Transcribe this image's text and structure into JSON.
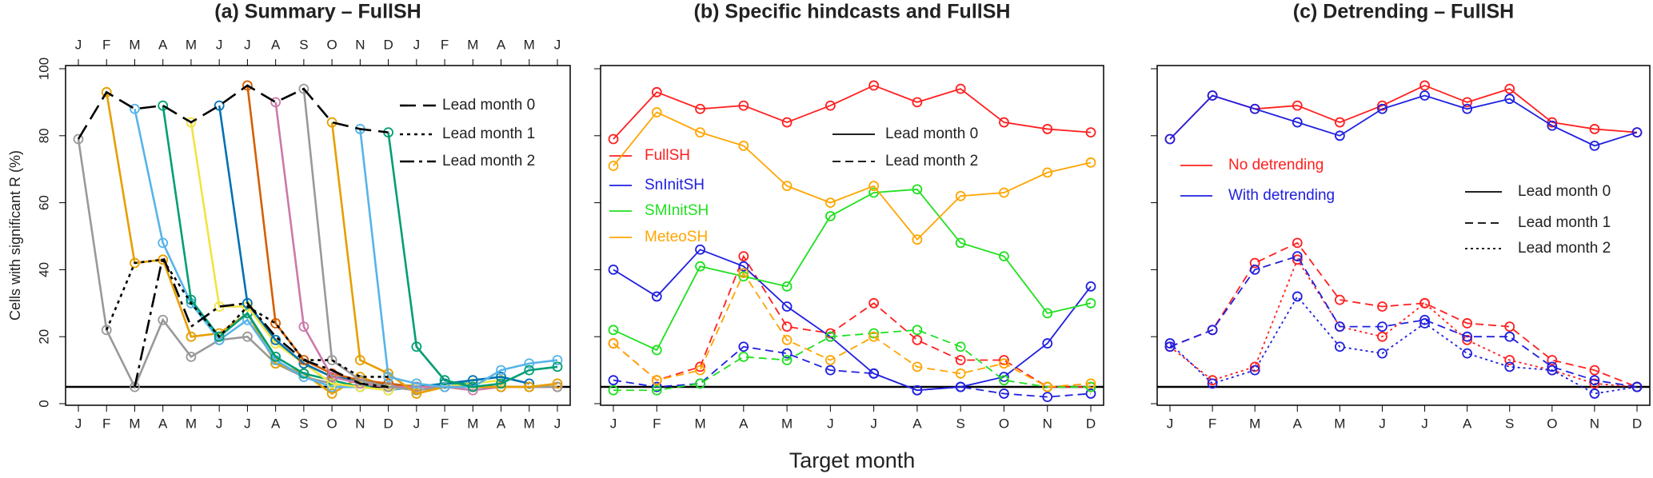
{
  "chart_data": [
    {
      "type": "line",
      "title": "(a) Summary – FullSH",
      "ylabel": "Cells with significant R (%)",
      "categories": [
        "J",
        "F",
        "M",
        "A",
        "M",
        "J",
        "J",
        "A",
        "S",
        "O",
        "N",
        "D",
        "J",
        "F",
        "M",
        "A",
        "M",
        "J"
      ],
      "top_axis": true,
      "ytick_labels": true,
      "ylim": [
        0,
        100
      ],
      "yticks": [
        0,
        20,
        40,
        60,
        80,
        100
      ],
      "reference_line": 5,
      "series": [
        {
          "color": "#999999",
          "values": [
            79,
            22,
            5,
            25,
            14,
            19,
            20,
            12,
            8,
            6,
            null,
            null,
            null,
            null,
            null,
            null,
            null,
            null
          ]
        },
        {
          "color": "#e69f00",
          "values": [
            null,
            93,
            42,
            43,
            20,
            21,
            27,
            12,
            9,
            3,
            8,
            5,
            null,
            null,
            null,
            null,
            null,
            null
          ]
        },
        {
          "color": "#56b4e9",
          "values": [
            null,
            null,
            88,
            48,
            30,
            19,
            25,
            13,
            8,
            5,
            5,
            4,
            5,
            6,
            null,
            null,
            null,
            null
          ]
        },
        {
          "color": "#009e73",
          "values": [
            null,
            null,
            null,
            89,
            31,
            20,
            27,
            14,
            9,
            7,
            5,
            6,
            5,
            6,
            6,
            null,
            null,
            null
          ]
        },
        {
          "color": "#f0e442",
          "values": [
            null,
            null,
            null,
            null,
            84,
            29,
            29,
            18,
            12,
            6,
            5,
            4,
            6,
            5,
            6,
            7,
            null,
            null
          ]
        },
        {
          "color": "#0072b2",
          "values": [
            null,
            null,
            null,
            null,
            null,
            89,
            30,
            19,
            12,
            8,
            7,
            6,
            5,
            6,
            7,
            8,
            6,
            null
          ]
        },
        {
          "color": "#d55e00",
          "values": [
            null,
            null,
            null,
            null,
            null,
            null,
            95,
            24,
            13,
            9,
            7,
            6,
            5,
            5,
            5,
            5,
            5,
            5
          ]
        },
        {
          "color": "#cc79a7",
          "values": [
            null,
            null,
            null,
            null,
            null,
            null,
            null,
            90,
            23,
            8,
            6,
            5,
            5,
            5,
            4,
            5,
            5,
            5
          ]
        },
        {
          "color": "#999999",
          "values": [
            null,
            null,
            null,
            null,
            null,
            null,
            null,
            null,
            94,
            13,
            7,
            5,
            4,
            5,
            5,
            5,
            5,
            5
          ]
        },
        {
          "color": "#e69f00",
          "values": [
            null,
            null,
            null,
            null,
            null,
            null,
            null,
            null,
            null,
            84,
            13,
            9,
            3,
            5,
            5,
            5,
            5,
            6
          ]
        },
        {
          "color": "#56b4e9",
          "values": [
            null,
            null,
            null,
            null,
            null,
            null,
            null,
            null,
            null,
            null,
            82,
            8,
            6,
            5,
            5,
            10,
            12,
            13
          ]
        },
        {
          "color": "#009e73",
          "values": [
            null,
            null,
            null,
            null,
            null,
            null,
            null,
            null,
            null,
            null,
            null,
            81,
            17,
            7,
            5,
            6,
            10,
            11
          ]
        }
      ],
      "lead_lines": [
        {
          "name": "Lead month 0",
          "dash": "20,9",
          "values": [
            79,
            93,
            88,
            89,
            84,
            89,
            95,
            90,
            94,
            84,
            82,
            81,
            null,
            null,
            null,
            null,
            null,
            null
          ]
        },
        {
          "name": "Lead month 1",
          "dash": "4,5",
          "values": [
            null,
            22,
            42,
            43,
            30,
            20,
            29,
            24,
            13,
            13,
            8,
            8,
            null,
            null,
            null,
            null,
            null,
            null
          ]
        },
        {
          "name": "Lead month 2",
          "dash": "18,6,4,6",
          "values": [
            null,
            null,
            5,
            44,
            23,
            29,
            30,
            20,
            13,
            10,
            6,
            5,
            null,
            null,
            null,
            null,
            null,
            null
          ]
        }
      ]
    },
    {
      "type": "line",
      "title": "(b) Specific hindcasts and FullSH",
      "xlabel": "Target month",
      "categories": [
        "J",
        "F",
        "M",
        "A",
        "M",
        "J",
        "J",
        "A",
        "S",
        "O",
        "N",
        "D"
      ],
      "top_axis": false,
      "ytick_labels": false,
      "ylim": [
        0,
        100
      ],
      "yticks": [
        0,
        20,
        40,
        60,
        80,
        100
      ],
      "reference_line": 5,
      "linestyles": [
        {
          "name": "Lead month 0",
          "dash": "none"
        },
        {
          "name": "Lead month 2",
          "dash": "10,6"
        }
      ],
      "series": [
        {
          "name": "FullSH",
          "color": "#ff2020",
          "values": [
            [
              79,
              93,
              88,
              89,
              84,
              89,
              95,
              90,
              94,
              84,
              82,
              81
            ],
            [
              18,
              7,
              11,
              44,
              23,
              21,
              30,
              19,
              13,
              13,
              5,
              5
            ]
          ]
        },
        {
          "name": "SnInitSH",
          "color": "#2020e0",
          "values": [
            [
              40,
              32,
              46,
              41,
              29,
              20,
              9,
              4,
              5,
              8,
              18,
              35
            ],
            [
              7,
              5,
              6,
              17,
              15,
              10,
              9,
              4,
              5,
              3,
              2,
              3
            ]
          ]
        },
        {
          "name": "SMInitSH",
          "color": "#20e020",
          "values": [
            [
              22,
              16,
              41,
              38,
              35,
              56,
              63,
              64,
              48,
              44,
              27,
              30
            ],
            [
              4,
              4,
              6,
              14,
              13,
              20,
              21,
              22,
              17,
              7,
              5,
              5
            ]
          ]
        },
        {
          "name": "MeteoSH",
          "color": "#ffa500",
          "values": [
            [
              71,
              87,
              81,
              77,
              65,
              60,
              65,
              49,
              62,
              63,
              69,
              72
            ],
            [
              18,
              7,
              10,
              39,
              19,
              13,
              20,
              11,
              9,
              12,
              5,
              6
            ]
          ]
        }
      ]
    },
    {
      "type": "line",
      "title": "(c) Detrending – FullSH",
      "categories": [
        "J",
        "F",
        "M",
        "A",
        "M",
        "J",
        "J",
        "A",
        "S",
        "O",
        "N",
        "D"
      ],
      "top_axis": false,
      "ytick_labels": false,
      "ylim": [
        0,
        100
      ],
      "yticks": [
        0,
        20,
        40,
        60,
        80,
        100
      ],
      "reference_line": 5,
      "linestyles": [
        {
          "name": "Lead month 0",
          "dash": "none"
        },
        {
          "name": "Lead month 1",
          "dash": "10,6"
        },
        {
          "name": "Lead month 2",
          "dash": "3,4"
        }
      ],
      "series": [
        {
          "name": "No detrending",
          "color": "#ff2020",
          "values": [
            [
              79,
              92,
              88,
              89,
              84,
              89,
              95,
              90,
              94,
              84,
              82,
              81
            ],
            [
              17,
              22,
              42,
              48,
              31,
              29,
              30,
              24,
              23,
              13,
              10,
              5
            ],
            [
              17,
              7,
              11,
              43,
              23,
              20,
              30,
              19,
              13,
              10,
              6,
              5
            ]
          ]
        },
        {
          "name": "With detrending",
          "color": "#2020e0",
          "values": [
            [
              79,
              92,
              88,
              84,
              80,
              88,
              92,
              88,
              91,
              83,
              77,
              81
            ],
            [
              17,
              22,
              40,
              44,
              23,
              23,
              25,
              20,
              20,
              11,
              7,
              5
            ],
            [
              18,
              6,
              10,
              32,
              17,
              15,
              24,
              15,
              11,
              10,
              3,
              5
            ]
          ]
        }
      ]
    }
  ]
}
